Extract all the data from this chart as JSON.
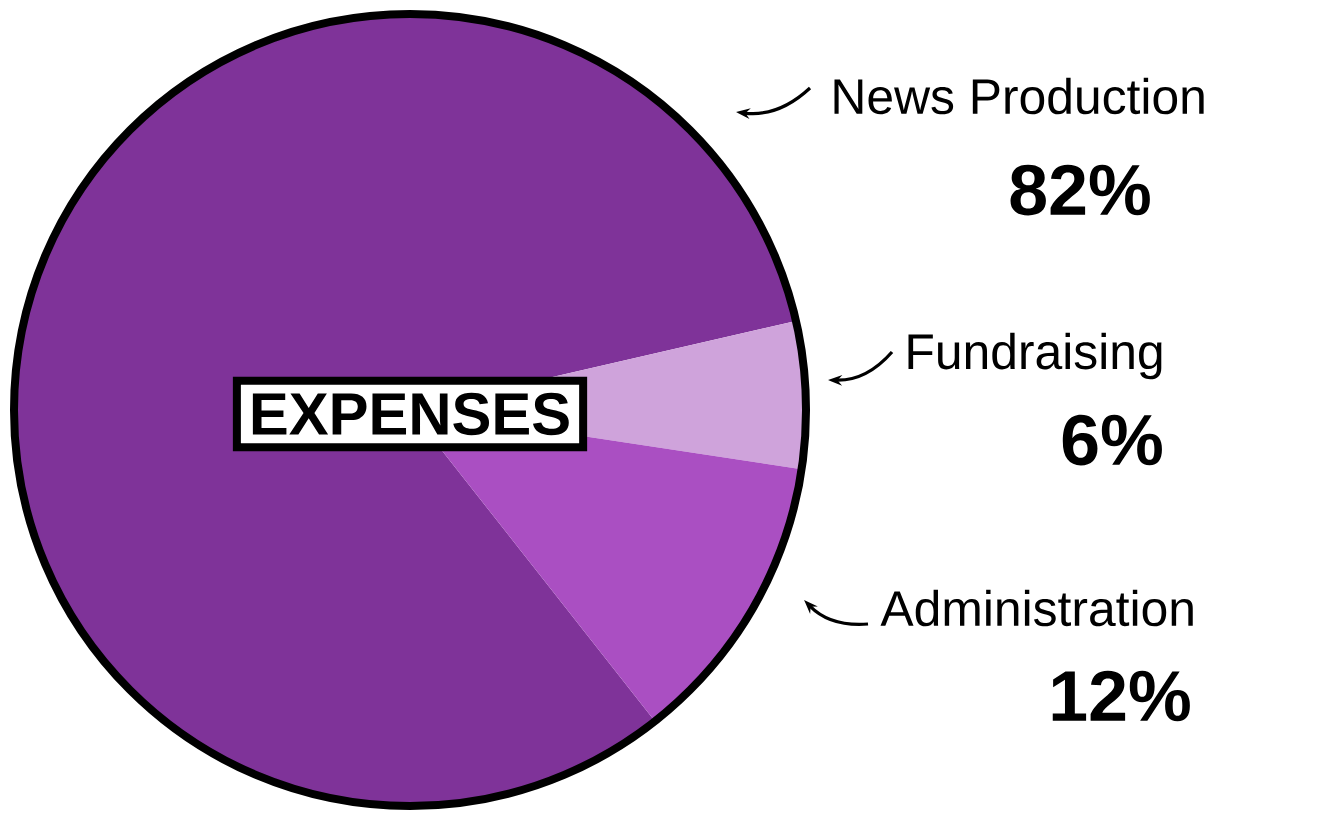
{
  "chart_data": {
    "type": "pie",
    "title": "EXPENSES",
    "categories": [
      "News Production",
      "Fundraising",
      "Administration"
    ],
    "values": [
      82,
      6,
      12
    ],
    "colors": [
      "#7f3399",
      "#cfa3db",
      "#aa4fc2"
    ],
    "value_labels": [
      "82%",
      "6%",
      "12%"
    ]
  }
}
